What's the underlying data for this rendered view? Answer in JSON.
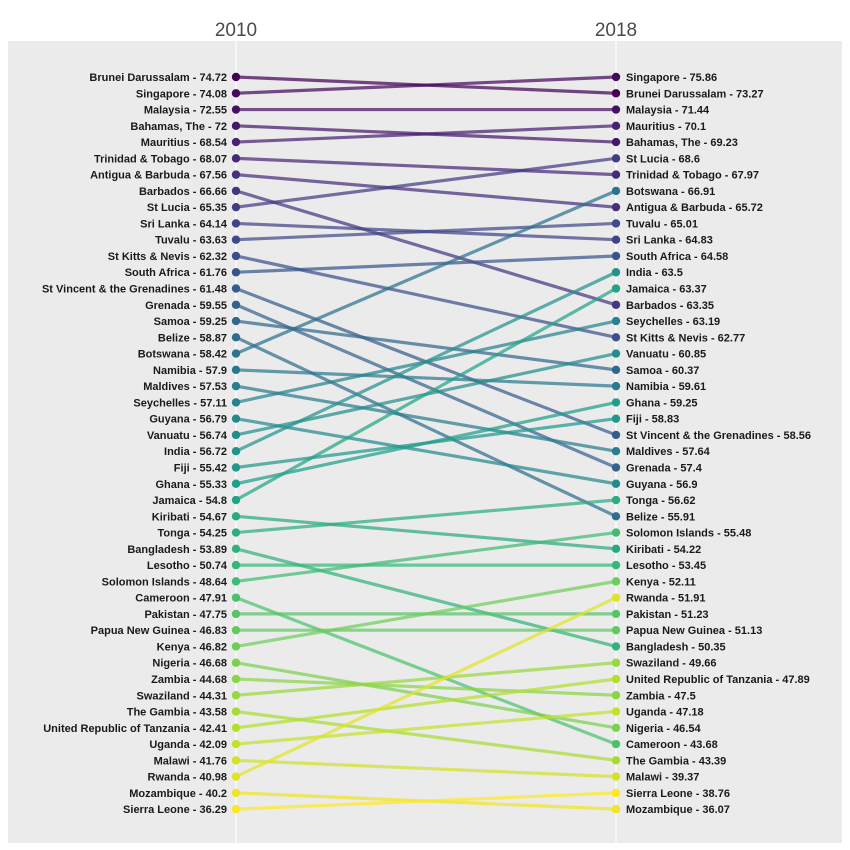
{
  "chart_data": {
    "type": "slope",
    "years": [
      "2010",
      "2018"
    ],
    "grid": true,
    "countries": [
      {
        "name": "Brunei Darussalam",
        "v2010": "74.72",
        "v2018": "73.27",
        "r2010": 0,
        "r2018": 1
      },
      {
        "name": "Singapore",
        "v2010": "74.08",
        "v2018": "75.86",
        "r2010": 1,
        "r2018": 0
      },
      {
        "name": "Malaysia",
        "v2010": "72.55",
        "v2018": "71.44",
        "r2010": 2,
        "r2018": 2
      },
      {
        "name": "Bahamas, The",
        "v2010": "72",
        "v2018": "69.23",
        "r2010": 3,
        "r2018": 4
      },
      {
        "name": "Mauritius",
        "v2010": "68.54",
        "v2018": "70.1",
        "r2010": 4,
        "r2018": 3
      },
      {
        "name": "Trinidad & Tobago",
        "v2010": "68.07",
        "v2018": "67.97",
        "r2010": 5,
        "r2018": 6
      },
      {
        "name": "Antigua & Barbuda",
        "v2010": "67.56",
        "v2018": "65.72",
        "r2010": 6,
        "r2018": 8
      },
      {
        "name": "Barbados",
        "v2010": "66.66",
        "v2018": "63.35",
        "r2010": 7,
        "r2018": 14
      },
      {
        "name": "St Lucia",
        "v2010": "65.35",
        "v2018": "68.6",
        "r2010": 8,
        "r2018": 5
      },
      {
        "name": "Sri Lanka",
        "v2010": "64.14",
        "v2018": "64.83",
        "r2010": 9,
        "r2018": 10
      },
      {
        "name": "Tuvalu",
        "v2010": "63.63",
        "v2018": "65.01",
        "r2010": 10,
        "r2018": 9
      },
      {
        "name": "St Kitts & Nevis",
        "v2010": "62.32",
        "v2018": "62.77",
        "r2010": 11,
        "r2018": 16
      },
      {
        "name": "South Africa",
        "v2010": "61.76",
        "v2018": "64.58",
        "r2010": 12,
        "r2018": 11
      },
      {
        "name": "St Vincent & the Grenadines",
        "v2010": "61.48",
        "v2018": "58.56",
        "r2010": 13,
        "r2018": 22
      },
      {
        "name": "Grenada",
        "v2010": "59.55",
        "v2018": "57.4",
        "r2010": 14,
        "r2018": 24
      },
      {
        "name": "Samoa",
        "v2010": "59.25",
        "v2018": "60.37",
        "r2010": 15,
        "r2018": 18
      },
      {
        "name": "Belize",
        "v2010": "58.87",
        "v2018": "55.91",
        "r2010": 16,
        "r2018": 27
      },
      {
        "name": "Botswana",
        "v2010": "58.42",
        "v2018": "66.91",
        "r2010": 17,
        "r2018": 7
      },
      {
        "name": "Namibia",
        "v2010": "57.9",
        "v2018": "59.61",
        "r2010": 18,
        "r2018": 19
      },
      {
        "name": "Maldives",
        "v2010": "57.53",
        "v2018": "57.64",
        "r2010": 19,
        "r2018": 23
      },
      {
        "name": "Seychelles",
        "v2010": "57.11",
        "v2018": "63.19",
        "r2010": 20,
        "r2018": 15
      },
      {
        "name": "Guyana",
        "v2010": "56.79",
        "v2018": "56.9",
        "r2010": 21,
        "r2018": 25
      },
      {
        "name": "Vanuatu",
        "v2010": "56.74",
        "v2018": "60.85",
        "r2010": 22,
        "r2018": 17
      },
      {
        "name": "India",
        "v2010": "56.72",
        "v2018": "63.5",
        "r2010": 23,
        "r2018": 12
      },
      {
        "name": "Fiji",
        "v2010": "55.42",
        "v2018": "58.83",
        "r2010": 24,
        "r2018": 21
      },
      {
        "name": "Ghana",
        "v2010": "55.33",
        "v2018": "59.25",
        "r2010": 25,
        "r2018": 20
      },
      {
        "name": "Jamaica",
        "v2010": "54.8",
        "v2018": "63.37",
        "r2010": 26,
        "r2018": 13
      },
      {
        "name": "Kiribati",
        "v2010": "54.67",
        "v2018": "54.22",
        "r2010": 27,
        "r2018": 29
      },
      {
        "name": "Tonga",
        "v2010": "54.25",
        "v2018": "56.62",
        "r2010": 28,
        "r2018": 26
      },
      {
        "name": "Bangladesh",
        "v2010": "53.89",
        "v2018": "50.35",
        "r2010": 29,
        "r2018": 35
      },
      {
        "name": "Lesotho",
        "v2010": "50.74",
        "v2018": "53.45",
        "r2010": 30,
        "r2018": 30
      },
      {
        "name": "Solomon Islands",
        "v2010": "48.64",
        "v2018": "55.48",
        "r2010": 31,
        "r2018": 28
      },
      {
        "name": "Cameroon",
        "v2010": "47.91",
        "v2018": "43.68",
        "r2010": 32,
        "r2018": 41
      },
      {
        "name": "Pakistan",
        "v2010": "47.75",
        "v2018": "51.23",
        "r2010": 33,
        "r2018": 33
      },
      {
        "name": "Papua New Guinea",
        "v2010": "46.83",
        "v2018": "51.13",
        "r2010": 34,
        "r2018": 34
      },
      {
        "name": "Kenya",
        "v2010": "46.82",
        "v2018": "52.11",
        "r2010": 35,
        "r2018": 31
      },
      {
        "name": "Nigeria",
        "v2010": "46.68",
        "v2018": "46.54",
        "r2010": 36,
        "r2018": 40
      },
      {
        "name": "Zambia",
        "v2010": "44.68",
        "v2018": "47.5",
        "r2010": 37,
        "r2018": 38
      },
      {
        "name": "Swaziland",
        "v2010": "44.31",
        "v2018": "49.66",
        "r2010": 38,
        "r2018": 36
      },
      {
        "name": "The Gambia",
        "v2010": "43.58",
        "v2018": "43.39",
        "r2010": 39,
        "r2018": 42
      },
      {
        "name": "United Republic of Tanzania",
        "v2010": "42.41",
        "v2018": "47.89",
        "r2010": 40,
        "r2018": 37
      },
      {
        "name": "Uganda",
        "v2010": "42.09",
        "v2018": "47.18",
        "r2010": 41,
        "r2018": 39
      },
      {
        "name": "Malawi",
        "v2010": "41.76",
        "v2018": "39.37",
        "r2010": 42,
        "r2018": 43
      },
      {
        "name": "Rwanda",
        "v2010": "40.98",
        "v2018": "51.91",
        "r2010": 43,
        "r2018": 32
      },
      {
        "name": "Mozambique",
        "v2010": "40.2",
        "v2018": "36.07",
        "r2010": 44,
        "r2018": 45
      },
      {
        "name": "Sierra Leone",
        "v2010": "36.29",
        "v2018": "38.76",
        "r2010": 45,
        "r2018": 44
      }
    ]
  }
}
